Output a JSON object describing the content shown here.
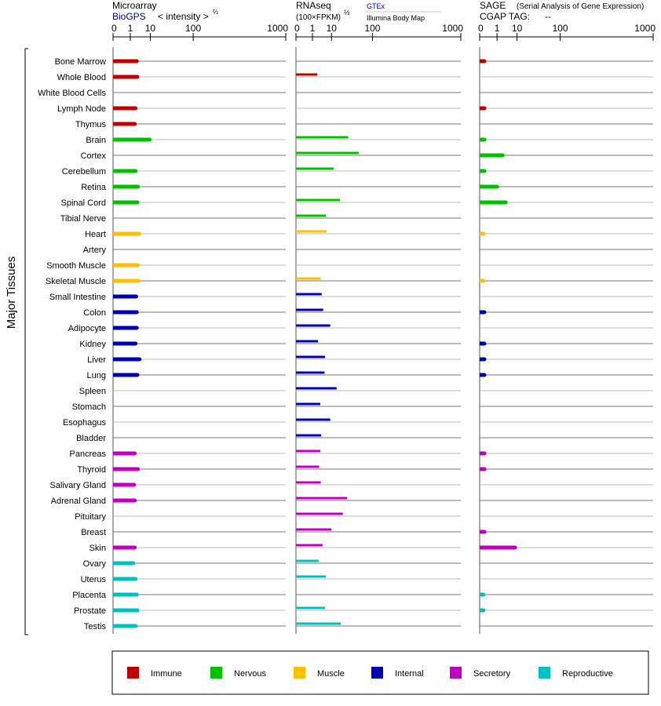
{
  "panels": [
    {
      "title": "Microarray",
      "subtitle": "BioGPS",
      "unit": "< intensity >",
      "unit_sup": "⅔",
      "link": false
    },
    {
      "title": "RNAseq",
      "subtitle": "(100×FPKM)",
      "unit_sup": "½",
      "source_top": "GTEx",
      "source_bottom": "Illumina Body Map"
    },
    {
      "title": "SAGE",
      "title_note": "(Serial Analysis of Gene Expression)",
      "subtitle": "CGAP TAG:",
      "tag": "--"
    }
  ],
  "axis_ticks": [
    "0",
    "1",
    "10",
    "100",
    "1000"
  ],
  "y_group_label": "Major Tissues",
  "legend": [
    {
      "name": "Immune",
      "color": "#c00000"
    },
    {
      "name": "Nervous",
      "color": "#00c000"
    },
    {
      "name": "Muscle",
      "color": "#ffc000"
    },
    {
      "name": "Internal",
      "color": "#0000b0"
    },
    {
      "name": "Secretory",
      "color": "#c000c0"
    },
    {
      "name": "Reproductive",
      "color": "#00c0c0"
    }
  ],
  "chart_data": {
    "type": "bar",
    "x_scale": "power",
    "xlim": [
      0,
      1000
    ],
    "categories": [
      "Bone Marrow",
      "Whole Blood",
      "White Blood Cells",
      "Lymph Node",
      "Thymus",
      "Brain",
      "Cortex",
      "Cerebellum",
      "Retina",
      "Spinal Cord",
      "Tibial Nerve",
      "Heart",
      "Artery",
      "Smooth Muscle",
      "Skeletal Muscle",
      "Small Intestine",
      "Colon",
      "Adipocyte",
      "Kidney",
      "Liver",
      "Lung",
      "Spleen",
      "Stomach",
      "Esophagus",
      "Bladder",
      "Pancreas",
      "Thyroid",
      "Salivary Gland",
      "Adrenal Gland",
      "Pituitary",
      "Breast",
      "Skin",
      "Ovary",
      "Uterus",
      "Placenta",
      "Prostate",
      "Testis"
    ],
    "category_groups": [
      "Immune",
      "Immune",
      "Immune",
      "Immune",
      "Immune",
      "Nervous",
      "Nervous",
      "Nervous",
      "Nervous",
      "Nervous",
      "Nervous",
      "Muscle",
      "Muscle",
      "Muscle",
      "Muscle",
      "Internal",
      "Internal",
      "Internal",
      "Internal",
      "Internal",
      "Internal",
      "Internal",
      "Internal",
      "Internal",
      "Internal",
      "Secretory",
      "Secretory",
      "Secretory",
      "Secretory",
      "Secretory",
      "Secretory",
      "Secretory",
      "Reproductive",
      "Reproductive",
      "Reproductive",
      "Reproductive",
      "Reproductive"
    ],
    "series": [
      {
        "name": "Microarray",
        "values": [
          2.6,
          2.8,
          null,
          2.2,
          2.0,
          9.5,
          null,
          2.2,
          3.0,
          2.8,
          null,
          3.5,
          null,
          3.0,
          3.2,
          2.4,
          2.6,
          2.6,
          2.2,
          3.6,
          2.8,
          null,
          null,
          null,
          null,
          2.0,
          3.0,
          1.8,
          2.0,
          null,
          null,
          2.0,
          1.6,
          2.2,
          2.6,
          2.8,
          2.2
        ]
      },
      {
        "name": "RNAseq",
        "values": [
          null,
          2.2,
          null,
          null,
          null,
          32,
          55,
          12,
          null,
          19,
          6,
          6.5,
          null,
          null,
          3.4,
          3.8,
          4.5,
          9,
          2.4,
          5.5,
          5.2,
          15,
          3.2,
          9,
          3.6,
          3.2,
          2.8,
          3.4,
          30,
          23,
          10,
          4.2,
          2.6,
          6,
          null,
          5.5,
          20
        ]
      },
      {
        "name": "SAGE",
        "values": [
          0.02,
          null,
          null,
          0.02,
          null,
          0.02,
          2.3,
          0.02,
          1.0,
          3.4,
          null,
          0.01,
          null,
          null,
          0.01,
          null,
          0.02,
          null,
          0.02,
          0.02,
          0.02,
          null,
          null,
          null,
          null,
          0.02,
          0.02,
          null,
          null,
          null,
          0.02,
          8.5,
          null,
          null,
          0.01,
          0.01,
          null
        ]
      }
    ]
  }
}
